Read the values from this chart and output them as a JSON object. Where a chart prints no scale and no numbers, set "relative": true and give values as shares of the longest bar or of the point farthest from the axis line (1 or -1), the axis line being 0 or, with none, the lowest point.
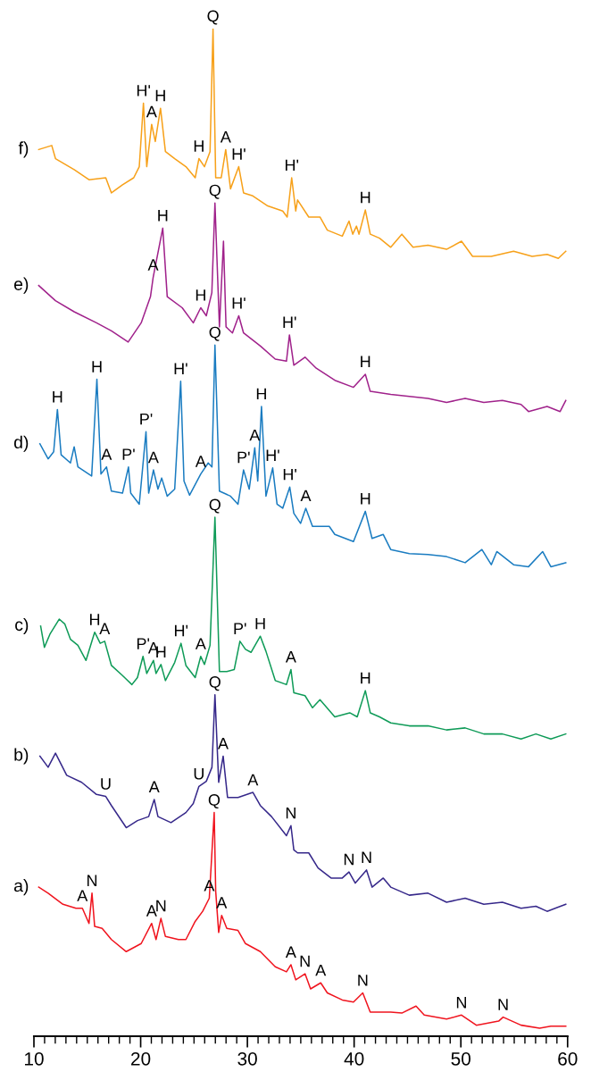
{
  "chart_data": {
    "type": "line",
    "relative": true,
    "xlim": [
      10,
      60
    ],
    "xticks": [
      10,
      {
        "value": 11,
        "label": null
      },
      {
        "value": 12,
        "label": null
      },
      {
        "value": 13,
        "label": null
      },
      {
        "value": 14,
        "label": null
      },
      {
        "value": 15,
        "label": null
      },
      {
        "value": 16,
        "label": null
      },
      {
        "value": 17,
        "label": null
      },
      {
        "value": 18,
        "label": null
      },
      {
        "value": 19,
        "label": null
      },
      20,
      {
        "value": 21,
        "label": null
      },
      {
        "value": 22,
        "label": null
      },
      {
        "value": 23,
        "label": null
      },
      {
        "value": 24,
        "label": null
      },
      {
        "value": 25,
        "label": null
      },
      {
        "value": 26,
        "label": null
      },
      {
        "value": 27,
        "label": null
      },
      {
        "value": 28,
        "label": null
      },
      {
        "value": 29,
        "label": null
      },
      30,
      {
        "value": 31,
        "label": null
      },
      {
        "value": 32,
        "label": null
      },
      {
        "value": 33,
        "label": null
      },
      {
        "value": 34,
        "label": null
      },
      {
        "value": 35,
        "label": null
      },
      {
        "value": 36,
        "label": null
      },
      {
        "value": 37,
        "label": null
      },
      {
        "value": 38,
        "label": null
      },
      {
        "value": 39,
        "label": null
      },
      40,
      {
        "value": 41,
        "label": null
      },
      {
        "value": 42,
        "label": null
      },
      {
        "value": 43,
        "label": null
      },
      {
        "value": 44,
        "label": null
      },
      {
        "value": 45,
        "label": null
      },
      {
        "value": 46,
        "label": null
      },
      {
        "value": 47,
        "label": null
      },
      {
        "value": 48,
        "label": null
      },
      {
        "value": 49,
        "label": null
      },
      50,
      {
        "value": 51,
        "label": null
      },
      {
        "value": 52,
        "label": null
      },
      {
        "value": 53,
        "label": null
      },
      {
        "value": 54,
        "label": null
      },
      {
        "value": 55,
        "label": null
      },
      {
        "value": 56,
        "label": null
      },
      {
        "value": 57,
        "label": null
      },
      {
        "value": 58,
        "label": null
      },
      {
        "value": 59,
        "label": null
      },
      60
    ],
    "series": [
      {
        "name": "f)",
        "color": "#f7a11a",
        "x": [
          10.45,
          11.67,
          12.02,
          13.77,
          15.16,
          16.73,
          17.26,
          18.3,
          19.35,
          19.87,
          20.26,
          20.57,
          21.03,
          21.37,
          21.86,
          22.32,
          23.19,
          24.24,
          25.11,
          25.46,
          25.98,
          26.5,
          26.78,
          27.03,
          27.55,
          27.97,
          28.42,
          29.19,
          29.64,
          30.51,
          31.91,
          33.31,
          33.73,
          34.15,
          34.53,
          34.7,
          35.75,
          36.8,
          37.49,
          38.89,
          39.52,
          39.87,
          40.22,
          40.46,
          41.05,
          41.51,
          42.38,
          43.43,
          44.47,
          45.52,
          46.92,
          48.66,
          50.06,
          51.1,
          52.85,
          54.94,
          56.68,
          58.08,
          59.13,
          59.83
        ],
        "values": [
          0.88,
          0.884,
          0.871,
          0.86,
          0.85,
          0.852,
          0.837,
          0.845,
          0.852,
          0.863,
          0.926,
          0.863,
          0.905,
          0.888,
          0.921,
          0.878,
          0.871,
          0.863,
          0.852,
          0.871,
          0.863,
          0.878,
          1.0,
          0.852,
          0.852,
          0.88,
          0.841,
          0.863,
          0.837,
          0.834,
          0.824,
          0.819,
          0.813,
          0.852,
          0.819,
          0.83,
          0.813,
          0.813,
          0.8,
          0.794,
          0.809,
          0.796,
          0.804,
          0.796,
          0.82,
          0.796,
          0.792,
          0.783,
          0.796,
          0.783,
          0.785,
          0.781,
          0.789,
          0.774,
          0.774,
          0.779,
          0.774,
          0.776,
          0.772,
          0.779
        ]
      },
      {
        "name": "e)",
        "color": "#a0228b",
        "x": [
          10.45,
          12.02,
          13.77,
          15.86,
          17.26,
          18.83,
          20.05,
          20.92,
          21.17,
          22.07,
          22.49,
          23.89,
          24.93,
          25.63,
          26.15,
          26.67,
          26.96,
          27.38,
          27.76,
          28.0,
          28.6,
          29.19,
          29.64,
          31.22,
          32.61,
          33.66,
          33.94,
          34.35,
          35.4,
          36.45,
          38.19,
          39.94,
          41.05,
          41.51,
          43.43,
          45.17,
          46.92,
          48.66,
          50.4,
          52.15,
          53.89,
          55.64,
          56.34,
          58.08,
          59.3,
          59.83
        ],
        "values": [
          0.745,
          0.73,
          0.719,
          0.708,
          0.7,
          0.689,
          0.708,
          0.734,
          0.753,
          0.802,
          0.734,
          0.723,
          0.708,
          0.723,
          0.715,
          0.738,
          0.827,
          0.704,
          0.789,
          0.704,
          0.698,
          0.715,
          0.698,
          0.685,
          0.672,
          0.67,
          0.696,
          0.666,
          0.674,
          0.663,
          0.651,
          0.644,
          0.657,
          0.64,
          0.637,
          0.635,
          0.633,
          0.629,
          0.633,
          0.629,
          0.631,
          0.627,
          0.62,
          0.625,
          0.62,
          0.631
        ]
      },
      {
        "name": "d)",
        "color": "#1a7cc1",
        "x": [
          10.56,
          11.33,
          11.85,
          12.2,
          12.55,
          13.42,
          13.77,
          14.12,
          15.41,
          15.9,
          16.28,
          16.8,
          17.26,
          18.3,
          18.86,
          19.07,
          19.87,
          20.5,
          20.75,
          21.2,
          21.62,
          21.97,
          22.49,
          23.19,
          23.75,
          24.06,
          24.58,
          25.63,
          26.33,
          26.68,
          26.96,
          27.38,
          28.42,
          29.12,
          29.64,
          30.17,
          30.69,
          30.97,
          31.32,
          31.74,
          32.37,
          32.78,
          33.31,
          33.97,
          34.35,
          34.98,
          35.47,
          36.1,
          37.67,
          38.19,
          39.94,
          41.05,
          41.68,
          42.73,
          43.43,
          45.17,
          46.92,
          48.66,
          50.4,
          51.97,
          52.85,
          53.37,
          54.94,
          56.34,
          57.66,
          58.43,
          59.83
        ],
        "values": [
          0.588,
          0.573,
          0.58,
          0.622,
          0.577,
          0.569,
          0.585,
          0.565,
          0.556,
          0.652,
          0.558,
          0.565,
          0.541,
          0.539,
          0.565,
          0.539,
          0.528,
          0.6,
          0.539,
          0.562,
          0.543,
          0.554,
          0.536,
          0.543,
          0.65,
          0.551,
          0.537,
          0.558,
          0.569,
          0.565,
          0.686,
          0.541,
          0.536,
          0.528,
          0.562,
          0.543,
          0.584,
          0.551,
          0.625,
          0.536,
          0.564,
          0.528,
          0.524,
          0.545,
          0.519,
          0.509,
          0.524,
          0.506,
          0.506,
          0.498,
          0.491,
          0.521,
          0.494,
          0.498,
          0.483,
          0.479,
          0.478,
          0.476,
          0.47,
          0.483,
          0.468,
          0.481,
          0.468,
          0.466,
          0.481,
          0.466,
          0.47
        ]
      },
      {
        "name": "c)",
        "color": "#0f9b58",
        "x": [
          10.63,
          10.98,
          11.5,
          12.37,
          12.9,
          13.42,
          14.12,
          14.88,
          15.69,
          16.21,
          16.63,
          17.26,
          18.3,
          19.18,
          19.7,
          20.22,
          20.57,
          21.2,
          21.44,
          21.9,
          22.32,
          23.19,
          23.78,
          24.24,
          25.11,
          25.63,
          25.98,
          26.5,
          26.96,
          27.38,
          28.07,
          28.77,
          29.3,
          29.82,
          30.34,
          31.21,
          31.74,
          32.61,
          33.66,
          34.08,
          34.35,
          35.4,
          36.1,
          36.8,
          38.19,
          39.59,
          40.29,
          41.05,
          41.51,
          42.38,
          43.43,
          45.17,
          46.92,
          48.66,
          50.4,
          52.15,
          53.89,
          55.64,
          57.03,
          58.43,
          59.83
        ],
        "values": [
          0.407,
          0.386,
          0.399,
          0.414,
          0.409,
          0.394,
          0.388,
          0.373,
          0.401,
          0.39,
          0.392,
          0.368,
          0.358,
          0.349,
          0.356,
          0.377,
          0.36,
          0.373,
          0.36,
          0.369,
          0.353,
          0.371,
          0.39,
          0.368,
          0.356,
          0.377,
          0.369,
          0.388,
          0.515,
          0.362,
          0.362,
          0.364,
          0.392,
          0.384,
          0.381,
          0.397,
          0.382,
          0.353,
          0.349,
          0.364,
          0.341,
          0.338,
          0.326,
          0.334,
          0.317,
          0.321,
          0.317,
          0.343,
          0.321,
          0.317,
          0.311,
          0.308,
          0.308,
          0.304,
          0.306,
          0.3,
          0.3,
          0.295,
          0.3,
          0.295,
          0.3
        ]
      },
      {
        "name": "b)",
        "color": "#36288a",
        "x": [
          10.56,
          11.33,
          12.02,
          13.07,
          14.47,
          15.86,
          16.73,
          17.26,
          18.65,
          19.7,
          20.75,
          21.27,
          21.62,
          22.84,
          24.24,
          24.93,
          25.46,
          26.15,
          26.68,
          26.96,
          27.31,
          27.73,
          28.14,
          29.12,
          30.52,
          31.21,
          32.26,
          33.66,
          34.08,
          34.35,
          34.7,
          35.75,
          36.62,
          37.84,
          38.89,
          39.52,
          40.11,
          41.16,
          41.68,
          42.73,
          43.43,
          45.17,
          46.92,
          48.66,
          50.4,
          52.15,
          53.89,
          55.64,
          57.03,
          58.08,
          59.83
        ],
        "values": [
          0.278,
          0.267,
          0.281,
          0.259,
          0.252,
          0.24,
          0.238,
          0.229,
          0.207,
          0.214,
          0.218,
          0.235,
          0.218,
          0.212,
          0.222,
          0.231,
          0.248,
          0.253,
          0.267,
          0.339,
          0.252,
          0.278,
          0.237,
          0.237,
          0.242,
          0.229,
          0.218,
          0.199,
          0.209,
          0.185,
          0.182,
          0.182,
          0.167,
          0.157,
          0.157,
          0.163,
          0.152,
          0.165,
          0.148,
          0.157,
          0.148,
          0.14,
          0.142,
          0.133,
          0.137,
          0.131,
          0.133,
          0.127,
          0.129,
          0.124,
          0.131
        ]
      },
      {
        "name": "a)",
        "color": "#f0141e",
        "x": [
          10.45,
          11.33,
          12.72,
          13.94,
          14.54,
          15.16,
          15.44,
          15.69,
          16.39,
          17.26,
          18.65,
          20.05,
          21.03,
          21.44,
          21.9,
          22.32,
          23.54,
          24.24,
          25.11,
          25.81,
          26.43,
          26.89,
          27.03,
          27.31,
          27.59,
          28.07,
          29.12,
          29.82,
          31.21,
          32.61,
          33.66,
          34.08,
          34.53,
          35.4,
          35.92,
          36.87,
          37.49,
          38.89,
          39.94,
          40.81,
          41.51,
          43.43,
          44.47,
          45.8,
          46.57,
          48.66,
          50.06,
          51.45,
          53.54,
          53.96,
          55.64,
          57.38,
          58.43,
          59.83
        ],
        "values": [
          0.148,
          0.142,
          0.131,
          0.127,
          0.127,
          0.112,
          0.142,
          0.109,
          0.107,
          0.096,
          0.084,
          0.092,
          0.112,
          0.096,
          0.117,
          0.099,
          0.096,
          0.096,
          0.114,
          0.124,
          0.137,
          0.222,
          0.144,
          0.103,
          0.12,
          0.107,
          0.105,
          0.092,
          0.084,
          0.069,
          0.064,
          0.071,
          0.056,
          0.062,
          0.047,
          0.053,
          0.043,
          0.036,
          0.034,
          0.043,
          0.024,
          0.024,
          0.023,
          0.03,
          0.021,
          0.017,
          0.021,
          0.011,
          0.015,
          0.019,
          0.011,
          0.008,
          0.01,
          0.01
        ]
      }
    ],
    "annotations": [
      {
        "text": "Q",
        "x": 26.78,
        "y": 1.0
      },
      {
        "text": "H'",
        "x": 20.26,
        "y": 0.926
      },
      {
        "text": "H",
        "x": 21.86,
        "y": 0.921
      },
      {
        "text": "A",
        "x": 21.03,
        "y": 0.905
      },
      {
        "text": "H",
        "x": 25.46,
        "y": 0.871
      },
      {
        "text": "A",
        "x": 27.97,
        "y": 0.88
      },
      {
        "text": "H'",
        "x": 29.19,
        "y": 0.863
      },
      {
        "text": "H'",
        "x": 34.15,
        "y": 0.852
      },
      {
        "text": "H",
        "x": 41.05,
        "y": 0.82
      },
      {
        "text": "Q",
        "x": 26.96,
        "y": 0.827
      },
      {
        "text": "H",
        "x": 22.07,
        "y": 0.802
      },
      {
        "text": "A",
        "x": 21.17,
        "y": 0.753
      },
      {
        "text": "H",
        "x": 25.63,
        "y": 0.723
      },
      {
        "text": "H'",
        "x": 29.19,
        "y": 0.715
      },
      {
        "text": "H'",
        "x": 33.94,
        "y": 0.696
      },
      {
        "text": "H",
        "x": 41.05,
        "y": 0.657
      },
      {
        "text": "Q",
        "x": 26.96,
        "y": 0.686
      },
      {
        "text": "H",
        "x": 12.2,
        "y": 0.622
      },
      {
        "text": "H",
        "x": 15.9,
        "y": 0.652
      },
      {
        "text": "H'",
        "x": 23.75,
        "y": 0.65
      },
      {
        "text": "P'",
        "x": 20.5,
        "y": 0.6
      },
      {
        "text": "A",
        "x": 16.8,
        "y": 0.565
      },
      {
        "text": "P'",
        "x": 18.86,
        "y": 0.565
      },
      {
        "text": "A",
        "x": 21.2,
        "y": 0.562
      },
      {
        "text": "A",
        "x": 25.63,
        "y": 0.558
      },
      {
        "text": "P'",
        "x": 29.64,
        "y": 0.562
      },
      {
        "text": "A",
        "x": 30.69,
        "y": 0.584
      },
      {
        "text": "H",
        "x": 31.32,
        "y": 0.625
      },
      {
        "text": "H'",
        "x": 32.37,
        "y": 0.564
      },
      {
        "text": "H'",
        "x": 33.97,
        "y": 0.545
      },
      {
        "text": "A",
        "x": 35.47,
        "y": 0.524
      },
      {
        "text": "H",
        "x": 41.05,
        "y": 0.521
      },
      {
        "text": "Q",
        "x": 26.96,
        "y": 0.515
      },
      {
        "text": "H",
        "x": 15.69,
        "y": 0.401
      },
      {
        "text": "A",
        "x": 16.63,
        "y": 0.392
      },
      {
        "text": "P'",
        "x": 20.22,
        "y": 0.377
      },
      {
        "text": "A",
        "x": 21.2,
        "y": 0.373
      },
      {
        "text": "H",
        "x": 21.9,
        "y": 0.369
      },
      {
        "text": "H'",
        "x": 23.78,
        "y": 0.39
      },
      {
        "text": "A",
        "x": 25.63,
        "y": 0.377
      },
      {
        "text": "P'",
        "x": 29.3,
        "y": 0.392
      },
      {
        "text": "H",
        "x": 31.21,
        "y": 0.397
      },
      {
        "text": "A",
        "x": 34.08,
        "y": 0.364
      },
      {
        "text": "H",
        "x": 41.05,
        "y": 0.343
      },
      {
        "text": "Q",
        "x": 26.96,
        "y": 0.339
      },
      {
        "text": "U",
        "x": 16.73,
        "y": 0.238
      },
      {
        "text": "A",
        "x": 21.27,
        "y": 0.235
      },
      {
        "text": "U",
        "x": 25.46,
        "y": 0.248
      },
      {
        "text": "A",
        "x": 27.73,
        "y": 0.278
      },
      {
        "text": "A",
        "x": 30.52,
        "y": 0.242
      },
      {
        "text": "N",
        "x": 34.08,
        "y": 0.209
      },
      {
        "text": "Q",
        "x": 26.89,
        "y": 0.222
      },
      {
        "text": "N",
        "x": 39.52,
        "y": 0.163
      },
      {
        "text": "N",
        "x": 41.16,
        "y": 0.165
      },
      {
        "text": "A",
        "x": 14.54,
        "y": 0.127
      },
      {
        "text": "N",
        "x": 15.44,
        "y": 0.142
      },
      {
        "text": "A",
        "x": 26.43,
        "y": 0.137
      },
      {
        "text": "A",
        "x": 27.59,
        "y": 0.12
      },
      {
        "text": "A",
        "x": 21.03,
        "y": 0.112
      },
      {
        "text": "N",
        "x": 21.9,
        "y": 0.117
      },
      {
        "text": "A",
        "x": 34.08,
        "y": 0.071
      },
      {
        "text": "N",
        "x": 35.4,
        "y": 0.062
      },
      {
        "text": "A",
        "x": 36.87,
        "y": 0.053
      },
      {
        "text": "N",
        "x": 40.81,
        "y": 0.043
      },
      {
        "text": "N",
        "x": 50.06,
        "y": 0.021
      },
      {
        "text": "N",
        "x": 53.96,
        "y": 0.019
      }
    ]
  }
}
